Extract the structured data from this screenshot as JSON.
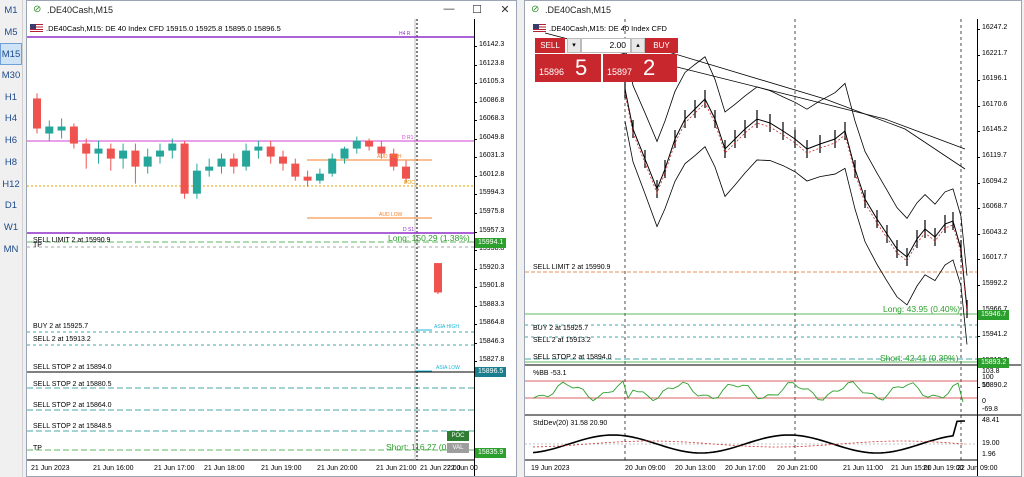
{
  "timeframes": [
    "M1",
    "M5",
    "M15",
    "M30",
    "H1",
    "H4",
    "H6",
    "H8",
    "H12",
    "D1",
    "W1",
    "MN"
  ],
  "active_timeframe": "M15",
  "left": {
    "title": ".DE40Cash,M15",
    "header": ".DE40Cash,M15:  DE 40 Index CFD   15915.0 15925.8 15895.0 15896.5",
    "yaxis": [
      "16142.3",
      "16123.8",
      "16105.3",
      "16086.8",
      "16068.3",
      "16049.8",
      "16031.3",
      "16012.8",
      "15994.3",
      "15975.8",
      "15957.3",
      "15938.8",
      "15920.3",
      "15901.8",
      "15883.3",
      "15864.8",
      "15846.3",
      "15827.8"
    ],
    "xaxis": [
      "21 Jun 2023",
      "21 Jun 16:00",
      "21 Jun 17:00",
      "21 Jun 18:00",
      "21 Jun 19:00",
      "21 Jun 20:00",
      "21 Jun 21:00",
      "21 Jun 22:00",
      "22 Jun 00"
    ],
    "orders": [
      "SELL LIMIT 2 at 15990.9",
      "BUY 2 at 15925.7",
      "SELL 2 at 15913.2",
      "SELL STOP 2 at 15894.0",
      "SELL STOP 2 at 15880.5",
      "SELL STOP 2 at 15864.0",
      "SELL STOP 2 at 15848.5"
    ],
    "tp_label": "TP",
    "long_label": "Long: 150.29  (1.38%)",
    "short_label": "Short: 116.27  (0.99%)",
    "price_tag_long": "15994.1",
    "price_tag_bid": "15896.5",
    "price_tag_short": "15835.9",
    "level_labels": [
      "H4 R",
      "D R1",
      "AUD HIGH",
      "POC",
      "AUD LOW",
      "D S1",
      "ASIA HIGH",
      "ASIA LOW"
    ],
    "poc_tags": [
      "POC",
      "VAL"
    ],
    "colors": {
      "bull": "#26a69a",
      "bear": "#ef5350",
      "purple": "#8e2fc9",
      "orange": "#f5822a",
      "pink": "#d63fd6",
      "green": "#2ca02c",
      "cyan": "#21b6d6",
      "tag_green": "#2e8b2e",
      "tag_teal": "#1b7e8e"
    }
  },
  "right": {
    "title": ".DE40Cash,M15",
    "header": ".DE40Cash,M15:  DE 40 Index CFD",
    "sell_label": "SELL",
    "buy_label": "BUY",
    "volume": "2.00",
    "sell_small": "15896",
    "sell_big": "5",
    "buy_small": "15897",
    "buy_big": "2",
    "yaxis": [
      "16247.2",
      "16221.7",
      "16196.1",
      "16170.6",
      "16145.2",
      "16119.7",
      "16094.2",
      "16068.7",
      "16043.2",
      "16017.7",
      "15992.2",
      "15966.7",
      "15941.2",
      "15915.7",
      "15890.2"
    ],
    "xaxis": [
      "19 Jun 2023",
      "20 Jun 09:00",
      "20 Jun 13:00",
      "20 Jun 17:00",
      "20 Jun 21:00",
      "21 Jun 11:00",
      "21 Jun 15:00",
      "21 Jun 19:00",
      "22 Jun 09:00"
    ],
    "orders": [
      "SELL LIMIT 2 at 15990.9",
      "BUY 2 at 15925.7",
      "SELL 2 at 15913.2",
      "SELL STOP 2 at 15894.0"
    ],
    "long_label": "Long: 43.95  (0.40%)",
    "short_label": "Short: 42.41  (0.39%)",
    "price_tag_long": "15946.7",
    "price_tag_short": "15893.2",
    "bb_label": "%BB -53.1",
    "bb_axis": [
      "103.8",
      "100",
      "50",
      "0",
      "-69.8"
    ],
    "std_label": "StdDev(20) 31.58 20.90",
    "std_axis": [
      "48.41",
      "19.00",
      "1.96"
    ]
  }
}
